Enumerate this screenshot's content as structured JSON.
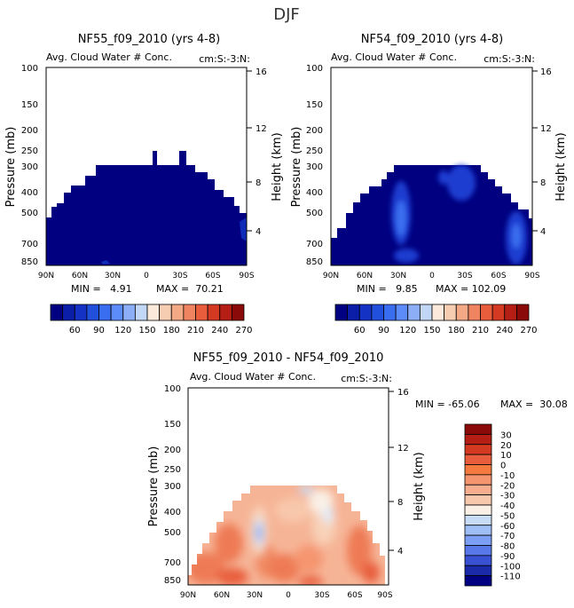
{
  "figure": {
    "title": "DJF"
  },
  "colorbar_a": {
    "colors": [
      "#000080",
      "#0a1ea8",
      "#1433c4",
      "#2150dc",
      "#3a6ef0",
      "#5c8cfa",
      "#8caef6",
      "#c2d6f6",
      "#fbeadc",
      "#f7cdb2",
      "#f3a886",
      "#ee8460",
      "#e85e3c",
      "#d43a22",
      "#b41e14",
      "#8a0a0a"
    ],
    "labels": [
      "60",
      "90",
      "120",
      "150",
      "180",
      "210",
      "240",
      "270"
    ]
  },
  "colorbar_b": {
    "colors": [
      "#8a0a0a",
      "#b41e14",
      "#d43a22",
      "#e85e3c",
      "#f47a40",
      "#f59570",
      "#f6ae8e",
      "#f8c8ac",
      "#faf0e6",
      "#c8dcf6",
      "#a0bef6",
      "#7c9ef4",
      "#5878ea",
      "#3850d2",
      "#1a2aa8",
      "#000080"
    ],
    "labels": [
      "30",
      "20",
      "10",
      "0",
      "-10",
      "-20",
      "-30",
      "-40",
      "-50",
      "-60",
      "-70",
      "-80",
      "-90",
      "-100",
      "-110"
    ]
  },
  "chart_data": [
    {
      "type": "heatmap",
      "title": "NF55_f09_2010 (yrs 4-8)",
      "subtitle": "Avg. Cloud Water # Conc.",
      "subtitle_right": "cm:S:-3:N:",
      "ylabel": "Pressure (mb)",
      "ylabel_right": "Height (km)",
      "xticks": [
        "90N",
        "60N",
        "30N",
        "0",
        "30S",
        "60S",
        "90S"
      ],
      "yticks": [
        "100",
        "150",
        "200",
        "250",
        "300",
        "400",
        "500",
        "700",
        "850"
      ],
      "height_ticks": [
        "16",
        "12",
        "8",
        "4"
      ],
      "min_label": "MIN =   4.91",
      "max_label": "MAX =  70.21",
      "min": 4.91,
      "max": 70.21
    },
    {
      "type": "heatmap",
      "title": "NF54_f09_2010 (yrs 4-8)",
      "subtitle": "Avg. Cloud Water # Conc.",
      "subtitle_right": "cm:S:-3:N:",
      "ylabel": "Pressure (mb)",
      "ylabel_right": "Height (km)",
      "xticks": [
        "90N",
        "60N",
        "30N",
        "0",
        "30S",
        "60S",
        "90S"
      ],
      "yticks": [
        "100",
        "150",
        "200",
        "250",
        "300",
        "400",
        "500",
        "700",
        "850"
      ],
      "height_ticks": [
        "16",
        "12",
        "8",
        "4"
      ],
      "min_label": "MIN =   9.85",
      "max_label": "MAX = 102.09",
      "min": 9.85,
      "max": 102.09
    },
    {
      "type": "heatmap",
      "title": "NF55_f09_2010 - NF54_f09_2010",
      "subtitle": "Avg. Cloud Water # Conc.",
      "subtitle_right": "cm:S:-3:N:",
      "ylabel": "Pressure (mb)",
      "ylabel_right": "Height (km)",
      "xticks": [
        "90N",
        "60N",
        "30N",
        "0",
        "30S",
        "60S",
        "90S"
      ],
      "yticks": [
        "100",
        "150",
        "200",
        "250",
        "300",
        "400",
        "500",
        "700",
        "850"
      ],
      "height_ticks": [
        "16",
        "12",
        "8",
        "4"
      ],
      "min_label": "MIN = -65.06",
      "max_label": "MAX =  30.08",
      "min": -65.06,
      "max": 30.08
    }
  ]
}
